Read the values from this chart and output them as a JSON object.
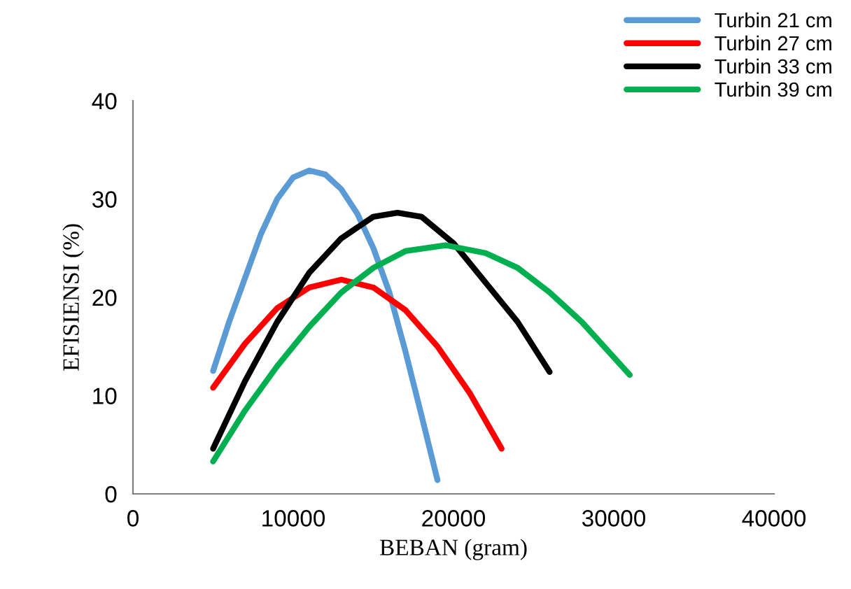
{
  "chart_data": {
    "type": "line",
    "xlabel": "BEBAN (gram)",
    "ylabel": "EFISIENSI (%)",
    "xlim": [
      0,
      40000
    ],
    "xticks": [
      0,
      10000,
      20000,
      30000,
      40000
    ],
    "ylim": [
      0,
      40
    ],
    "yticks": [
      0,
      10,
      20,
      30,
      40
    ],
    "grid": false,
    "legend": "top right",
    "marker": "none",
    "line_style": "solid",
    "series": [
      {
        "name": "Turbin 21 cm",
        "color": "#5b9bd5",
        "x": [
          5000,
          6000,
          7000,
          8000,
          9000,
          10000,
          11000,
          12000,
          13000,
          14000,
          15000,
          16000,
          17000,
          18000,
          19000
        ],
        "values": [
          12.5,
          17.5,
          22,
          26.5,
          30,
          32.2,
          32.9,
          32.5,
          31,
          28.5,
          25,
          20.5,
          14.5,
          8,
          1.4
        ]
      },
      {
        "name": "Turbin 27 cm",
        "color": "#ff0000",
        "x": [
          5000,
          7000,
          9000,
          11000,
          13000,
          15000,
          17000,
          19000,
          21000,
          23000
        ],
        "values": [
          10.8,
          15.3,
          18.9,
          21,
          21.8,
          21,
          18.7,
          15,
          10.3,
          4.6
        ]
      },
      {
        "name": "Turbin 33 cm",
        "color": "#000000",
        "x": [
          5000,
          7000,
          9000,
          11000,
          13000,
          15000,
          16500,
          18000,
          20000,
          22000,
          24000,
          26000
        ],
        "values": [
          4.6,
          11.5,
          17.5,
          22.5,
          26,
          28.2,
          28.6,
          28.2,
          25.5,
          21.5,
          17.5,
          12.4
        ]
      },
      {
        "name": "Turbin 39 cm",
        "color": "#00b050",
        "x": [
          5000,
          7000,
          9000,
          11000,
          13000,
          15000,
          17000,
          19500,
          22000,
          24000,
          26000,
          28000,
          31000
        ],
        "values": [
          3.3,
          8.5,
          13,
          17,
          20.5,
          23,
          24.7,
          25.3,
          24.5,
          23,
          20.5,
          17.5,
          12.1
        ]
      }
    ]
  }
}
